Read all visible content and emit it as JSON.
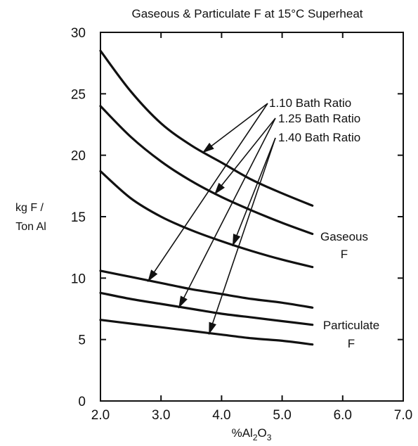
{
  "chart_data": {
    "type": "line",
    "title": "Gaseous & Particulate F at 15°C Superheat",
    "xlabel": "%Al",
    "xlabel_sub": "2",
    "xlabel_mid": "O",
    "xlabel_sub2": "3",
    "ylabel_line1": "kg F /",
    "ylabel_line2": "Ton Al",
    "xlim": [
      2.0,
      7.0
    ],
    "ylim": [
      0,
      30
    ],
    "xticks": [
      "2.0",
      "3.0",
      "4.0",
      "5.0",
      "6.0",
      "7.0"
    ],
    "yticks": [
      "0",
      "5",
      "10",
      "15",
      "20",
      "25",
      "30"
    ],
    "grid": false,
    "series": [
      {
        "group": "Gaseous",
        "ratio": "1.10",
        "x": [
          2.0,
          2.5,
          3.0,
          3.5,
          4.0,
          4.5,
          5.0,
          5.5
        ],
        "y": [
          28.5,
          25.2,
          22.6,
          20.8,
          19.4,
          18.0,
          16.9,
          15.9
        ]
      },
      {
        "group": "Gaseous",
        "ratio": "1.25",
        "x": [
          2.0,
          2.5,
          3.0,
          3.5,
          4.0,
          4.5,
          5.0,
          5.5
        ],
        "y": [
          24.0,
          21.5,
          19.5,
          17.9,
          16.6,
          15.5,
          14.5,
          13.6
        ]
      },
      {
        "group": "Gaseous",
        "ratio": "1.40",
        "x": [
          2.0,
          2.5,
          3.0,
          3.5,
          4.0,
          4.5,
          5.0,
          5.5
        ],
        "y": [
          18.7,
          16.5,
          15.0,
          13.9,
          13.0,
          12.2,
          11.5,
          10.9
        ]
      },
      {
        "group": "Particulate",
        "ratio": "1.10",
        "x": [
          2.0,
          2.5,
          3.0,
          3.5,
          4.0,
          4.5,
          5.0,
          5.5
        ],
        "y": [
          10.6,
          10.1,
          9.6,
          9.1,
          8.7,
          8.3,
          8.0,
          7.6
        ]
      },
      {
        "group": "Particulate",
        "ratio": "1.25",
        "x": [
          2.0,
          2.5,
          3.0,
          3.5,
          4.0,
          4.5,
          5.0,
          5.5
        ],
        "y": [
          8.8,
          8.3,
          7.9,
          7.5,
          7.1,
          6.8,
          6.5,
          6.2
        ]
      },
      {
        "group": "Particulate",
        "ratio": "1.40",
        "x": [
          2.0,
          2.5,
          3.0,
          3.5,
          4.0,
          4.5,
          5.0,
          5.5
        ],
        "y": [
          6.6,
          6.3,
          6.0,
          5.7,
          5.4,
          5.1,
          4.9,
          4.6
        ]
      }
    ],
    "annotations": {
      "ratio_labels": [
        "1.10 Bath Ratio",
        "1.25 Bath Ratio",
        "1.40 Bath Ratio"
      ],
      "gaseous_line1": "Gaseous",
      "gaseous_line2": "F",
      "particulate_line1": "Particulate",
      "particulate_line2": "F"
    }
  }
}
